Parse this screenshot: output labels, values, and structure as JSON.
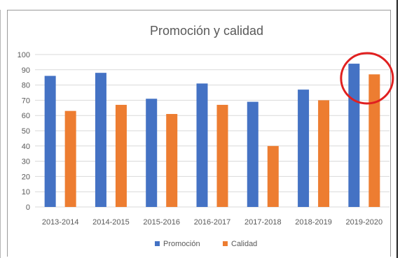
{
  "colors": {
    "promocion": "#4472C4",
    "calidad": "#ED7D31",
    "grid": "#d9d9d9",
    "highlight_circle": "#e02020"
  },
  "chart_data": {
    "type": "bar",
    "title": "Promoción y calidad",
    "categories": [
      "2013-2014",
      "2014-2015",
      "2015-2016",
      "2016-2017",
      "2017-2018",
      "2018-2019",
      "2019-2020"
    ],
    "series": [
      {
        "name": "Promoción",
        "values": [
          86,
          88,
          71,
          81,
          69,
          77,
          94
        ]
      },
      {
        "name": "Calidad",
        "values": [
          63,
          67,
          61,
          67,
          40,
          70,
          87
        ]
      }
    ],
    "ylim": [
      0,
      100
    ],
    "yticks": [
      0,
      10,
      20,
      30,
      40,
      50,
      60,
      70,
      80,
      90,
      100
    ],
    "grid": "horizontal",
    "legend": "bottom",
    "annotation": {
      "type": "circle",
      "category": "2019-2020"
    }
  }
}
